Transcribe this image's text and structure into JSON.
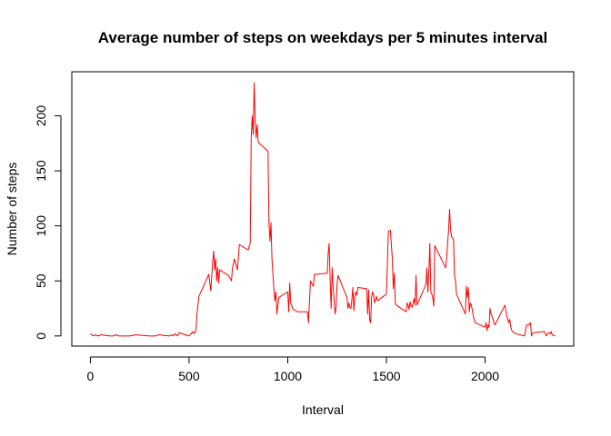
{
  "chart_data": {
    "type": "line",
    "title": "Average number of steps on weekdays per 5 minutes interval",
    "xlabel": "Interval",
    "ylabel": "Number of steps",
    "xlim": [
      -94,
      2449
    ],
    "ylim": [
      -9.2,
      240
    ],
    "xticks": [
      0,
      500,
      1000,
      1500,
      2000
    ],
    "yticks": [
      0,
      50,
      100,
      150,
      200
    ],
    "grid": false,
    "series": [
      {
        "color": "#ff0000",
        "x": [
          0,
          15,
          25,
          40,
          55,
          100,
          115,
          130,
          145,
          200,
          230,
          300,
          330,
          345,
          400,
          415,
          420,
          430,
          440,
          450,
          500,
          510,
          520,
          525,
          535,
          540,
          550,
          600,
          610,
          620,
          625,
          630,
          635,
          640,
          645,
          650,
          655,
          700,
          715,
          720,
          730,
          745,
          755,
          800,
          805,
          810,
          815,
          820,
          825,
          830,
          835,
          840,
          845,
          850,
          855,
          900,
          905,
          910,
          915,
          920,
          925,
          930,
          935,
          940,
          945,
          950,
          955,
          1000,
          1005,
          1010,
          1015,
          1020,
          1025,
          1030,
          1040,
          1050,
          1100,
          1105,
          1115,
          1130,
          1135,
          1145,
          1200,
          1205,
          1210,
          1215,
          1220,
          1225,
          1230,
          1235,
          1240,
          1245,
          1250,
          1255,
          1300,
          1305,
          1310,
          1315,
          1320,
          1325,
          1330,
          1335,
          1340,
          1345,
          1350,
          1355,
          1400,
          1405,
          1410,
          1415,
          1420,
          1425,
          1430,
          1435,
          1440,
          1445,
          1450,
          1455,
          1500,
          1510,
          1520,
          1530,
          1535,
          1540,
          1545,
          1550,
          1600,
          1605,
          1610,
          1615,
          1620,
          1625,
          1630,
          1640,
          1645,
          1650,
          1655,
          1700,
          1705,
          1710,
          1715,
          1720,
          1725,
          1730,
          1735,
          1740,
          1745,
          1800,
          1805,
          1810,
          1815,
          1820,
          1825,
          1830,
          1835,
          1840,
          1845,
          1850,
          1855,
          1900,
          1905,
          1910,
          1915,
          1920,
          1925,
          1930,
          1935,
          1940,
          1945,
          1950,
          2000,
          2005,
          2010,
          2015,
          2020,
          2025,
          2030,
          2035,
          2040,
          2045,
          2050,
          2100,
          2110,
          2120,
          2125,
          2130,
          2135,
          2140,
          2145,
          2150,
          2155,
          2200,
          2210,
          2220,
          2230,
          2235,
          2240,
          2245,
          2300,
          2310,
          2320,
          2330,
          2335,
          2340,
          2355
        ],
        "y": [
          2,
          0,
          1,
          0,
          1,
          0,
          0,
          1,
          0,
          0,
          1,
          0,
          0,
          1,
          0,
          1,
          0,
          2,
          0,
          3,
          0,
          2,
          4,
          2,
          5,
          20,
          36,
          56,
          41,
          68,
          77,
          60,
          70,
          50,
          62,
          48,
          60,
          55,
          50,
          62,
          70,
          60,
          83,
          78,
          82,
          84,
          180,
          200,
          183,
          230,
          195,
          180,
          192,
          177,
          175,
          168,
          102,
          86,
          103,
          70,
          56,
          42,
          32,
          40,
          20,
          28,
          35,
          40,
          22,
          48,
          30,
          28,
          25,
          24,
          23,
          22,
          22,
          12,
          50,
          45,
          56,
          56,
          57,
          75,
          84,
          50,
          25,
          62,
          45,
          32,
          20,
          26,
          47,
          55,
          35,
          25,
          30,
          26,
          25,
          33,
          44,
          23,
          35,
          40,
          37,
          44,
          43,
          20,
          42,
          15,
          12,
          35,
          40,
          38,
          30,
          33,
          36,
          32,
          38,
          95,
          96,
          70,
          43,
          57,
          30,
          28,
          22,
          30,
          28,
          24,
          31,
          27,
          26,
          34,
          28,
          55,
          28,
          47,
          62,
          40,
          58,
          84,
          40,
          38,
          35,
          27,
          82,
          62,
          70,
          84,
          96,
          115,
          97,
          90,
          89,
          88,
          55,
          50,
          38,
          20,
          45,
          35,
          44,
          22,
          30,
          28,
          24,
          18,
          15,
          12,
          8,
          12,
          5,
          10,
          8,
          25,
          20,
          18,
          15,
          12,
          10,
          28,
          18,
          12,
          15,
          8,
          5,
          4,
          3,
          3,
          2,
          0,
          10,
          10,
          12,
          0,
          2,
          3,
          4,
          0,
          3,
          2,
          4,
          1,
          0
        ]
      }
    ]
  }
}
